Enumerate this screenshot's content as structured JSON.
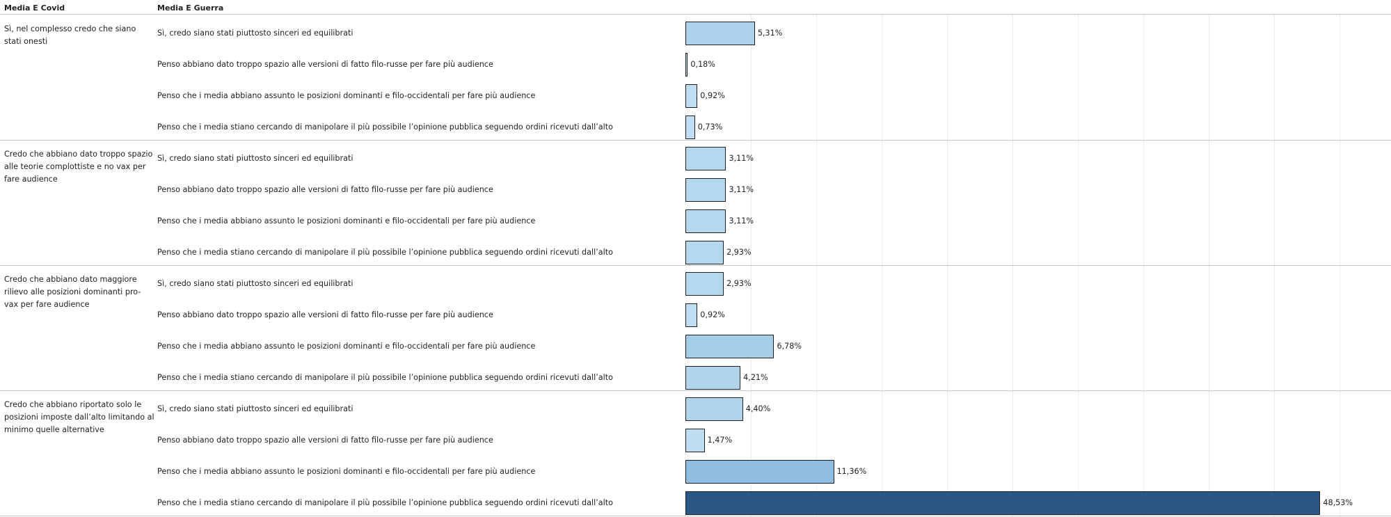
{
  "headers": {
    "media_covid": "Media E Covid",
    "media_guerra": "Media E Guerra"
  },
  "colors": {
    "bar_low": "#b9dcf0",
    "bar_mid": "#8fbcdf",
    "bar_high": "#2a5783",
    "border": "#1f1f1f",
    "divider": "#c8c8c8",
    "grid": "#ececec"
  },
  "chart_data": {
    "type": "bar",
    "orientation": "horizontal",
    "row_dimension": "Media E Covid",
    "column_dimension": "Media E Guerra",
    "groups": [
      {
        "label": "Sì, nel complesso credo che siano stati onesti",
        "rows": [
          {
            "label": "Sì, credo siano stati piuttosto sinceri ed equilibrati",
            "value": 5.31,
            "text": "5,31%"
          },
          {
            "label": "Penso abbiano dato troppo spazio alle versioni di fatto filo-russe per fare più audience",
            "value": 0.18,
            "text": "0,18%"
          },
          {
            "label": "Penso che i media abbiano assunto le posizioni dominanti e filo-occidentali per fare più audience",
            "value": 0.92,
            "text": "0,92%"
          },
          {
            "label": "Penso che i media stiano cercando di manipolare il più possibile l’opinione pubblica seguendo ordini ricevuti dall’alto",
            "value": 0.73,
            "text": "0,73%"
          }
        ]
      },
      {
        "label": "Credo che abbiano dato troppo spazio alle teorie complottiste e no vax per fare audience",
        "rows": [
          {
            "label": "Sì, credo siano stati piuttosto sinceri ed equilibrati",
            "value": 3.11,
            "text": "3,11%"
          },
          {
            "label": "Penso abbiano dato troppo spazio alle versioni di fatto filo-russe per fare più audience",
            "value": 3.11,
            "text": "3,11%"
          },
          {
            "label": "Penso che i media abbiano assunto le posizioni dominanti e filo-occidentali per fare più audience",
            "value": 3.11,
            "text": "3,11%"
          },
          {
            "label": "Penso che i media stiano cercando di manipolare il più possibile l’opinione pubblica seguendo ordini ricevuti dall’alto",
            "value": 2.93,
            "text": "2,93%"
          }
        ]
      },
      {
        "label": "Credo che abbiano dato maggiore rilievo alle posizioni dominanti pro-vax per fare audience",
        "rows": [
          {
            "label": "Sì, credo siano stati piuttosto sinceri ed equilibrati",
            "value": 2.93,
            "text": "2,93%"
          },
          {
            "label": "Penso abbiano dato troppo spazio alle versioni di fatto filo-russe per fare più audience",
            "value": 0.92,
            "text": "0,92%"
          },
          {
            "label": "Penso che i media abbiano assunto le posizioni dominanti e filo-occidentali per fare più audience",
            "value": 6.78,
            "text": "6,78%"
          },
          {
            "label": "Penso che i media stiano cercando di manipolare il più possibile l’opinione pubblica seguendo ordini ricevuti dall’alto",
            "value": 4.21,
            "text": "4,21%"
          }
        ]
      },
      {
        "label": "Credo che abbiano riportato solo le posizioni imposte dall’alto limitando al minimo quelle alternative",
        "rows": [
          {
            "label": "Sì, credo siano stati piuttosto sinceri ed equilibrati",
            "value": 4.4,
            "text": "4,40%"
          },
          {
            "label": "Penso abbiano dato troppo spazio alle versioni di fatto filo-russe per fare più audience",
            "value": 1.47,
            "text": "1,47%"
          },
          {
            "label": "Penso che i media abbiano assunto le posizioni dominanti e filo-occidentali per fare più audience",
            "value": 11.36,
            "text": "11,36%"
          },
          {
            "label": "Penso che i media stiano cercando di manipolare il più possibile l’opinione pubblica seguendo ordini ricevuti dall’alto",
            "value": 48.53,
            "text": "48,53%"
          }
        ]
      }
    ],
    "xlim": [
      0,
      53
    ],
    "grid": true,
    "legend": "none"
  }
}
